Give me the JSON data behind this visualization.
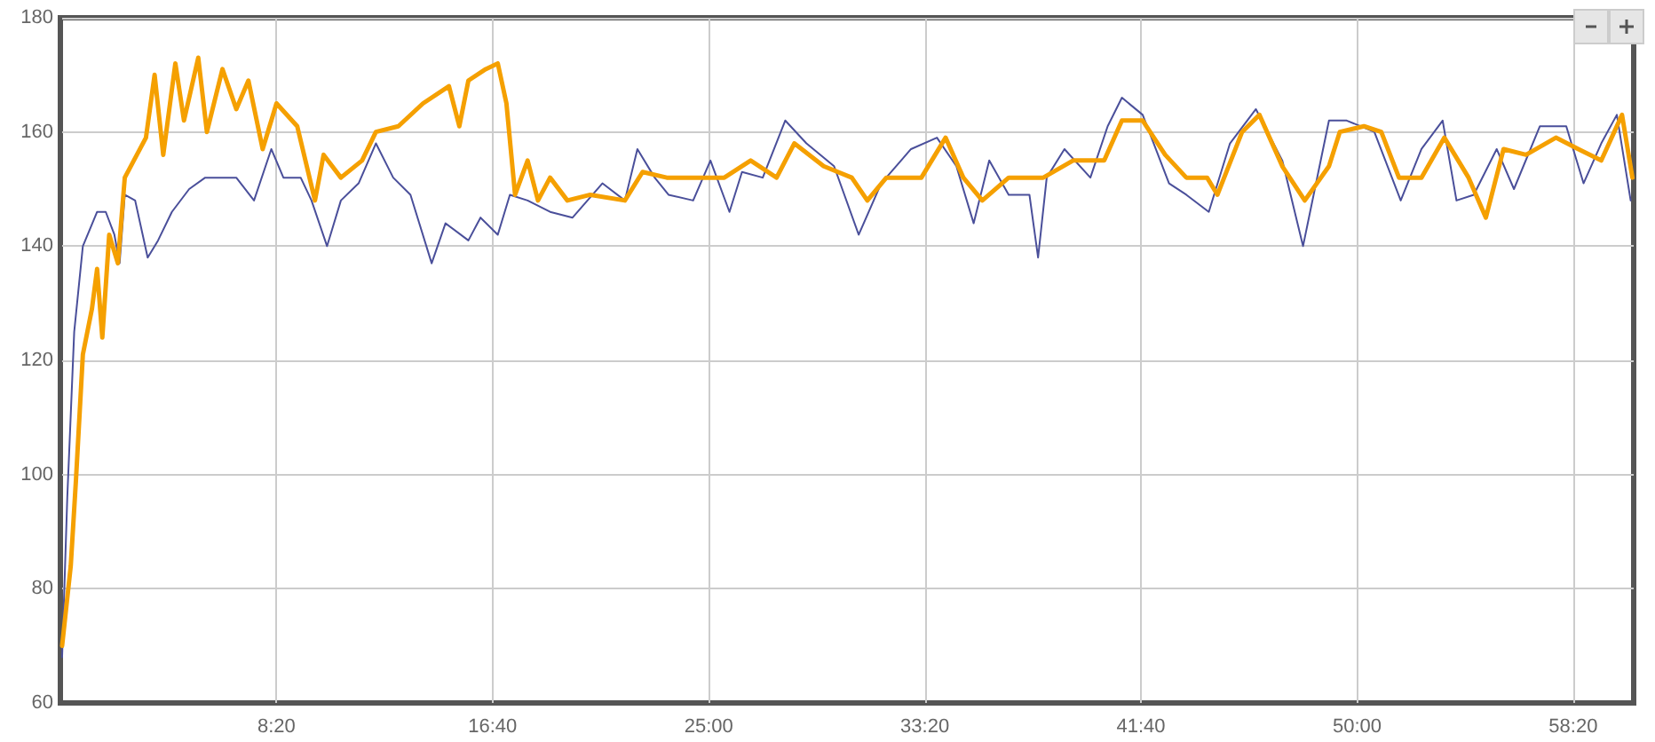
{
  "chart_data": {
    "type": "line",
    "xlim": [
      0,
      3640
    ],
    "xticks": [
      {
        "value": 500,
        "label": "8:20"
      },
      {
        "value": 1000,
        "label": "16:40"
      },
      {
        "value": 1500,
        "label": "25:00"
      },
      {
        "value": 2000,
        "label": "33:20"
      },
      {
        "value": 2500,
        "label": "41:40"
      },
      {
        "value": 3000,
        "label": "50:00"
      },
      {
        "value": 3500,
        "label": "58:20"
      }
    ],
    "ylim": [
      60,
      180
    ],
    "yticks": [
      60,
      80,
      100,
      120,
      140,
      160,
      180
    ],
    "grid": true,
    "marker": "none",
    "line_style": "solid",
    "series": [
      {
        "color": "#4a4f9a",
        "x": [
          4,
          16,
          32,
          52,
          85,
          105,
          125,
          137,
          149,
          173,
          202,
          226,
          258,
          298,
          335,
          367,
          407,
          448,
          488,
          516,
          556,
          581,
          617,
          649,
          690,
          730,
          770,
          810,
          859,
          891,
          944,
          972,
          1012,
          1040,
          1081,
          1133,
          1185,
          1254,
          1306,
          1335,
          1375,
          1407,
          1464,
          1504,
          1548,
          1577,
          1625,
          1677,
          1726,
          1790,
          1847,
          1899,
          1968,
          2028,
          2073,
          2113,
          2149,
          2194,
          2242,
          2262,
          2282,
          2323,
          2383,
          2423,
          2456,
          2504,
          2565,
          2605,
          2657,
          2706,
          2766,
          2827,
          2875,
          2935,
          2976,
          3040,
          3101,
          3149,
          3198,
          3230,
          3270,
          3323,
          3363,
          3423,
          3484,
          3524,
          3565,
          3601,
          3633
        ],
        "values": [
          68,
          96,
          125,
          140,
          146,
          146,
          142,
          137,
          149,
          148,
          138,
          141,
          146,
          150,
          152,
          152,
          152,
          148,
          157,
          152,
          152,
          148,
          140,
          148,
          151,
          158,
          152,
          149,
          137,
          144,
          141,
          145,
          142,
          149,
          148,
          146,
          145,
          151,
          148,
          157,
          152,
          149,
          148,
          155,
          146,
          153,
          152,
          162,
          158,
          154,
          142,
          151,
          157,
          159,
          154,
          144,
          155,
          149,
          149,
          138,
          152,
          157,
          152,
          161,
          166,
          163,
          151,
          149,
          146,
          158,
          164,
          155,
          140,
          162,
          162,
          160,
          148,
          157,
          162,
          148,
          149,
          157,
          150,
          161,
          161,
          151,
          158,
          163,
          148
        ]
      },
      {
        "color": "#f5a000",
        "x": [
          4,
          24,
          36,
          52,
          73,
          85,
          97,
          113,
          133,
          149,
          177,
          198,
          218,
          238,
          266,
          286,
          319,
          339,
          375,
          407,
          435,
          468,
          500,
          548,
          589,
          609,
          649,
          698,
          730,
          782,
          839,
          899,
          923,
          944,
          984,
          1012,
          1032,
          1052,
          1081,
          1105,
          1133,
          1173,
          1226,
          1306,
          1347,
          1403,
          1468,
          1536,
          1597,
          1657,
          1698,
          1766,
          1831,
          1867,
          1911,
          1992,
          2048,
          2089,
          2133,
          2194,
          2274,
          2343,
          2415,
          2456,
          2504,
          2556,
          2605,
          2653,
          2677,
          2734,
          2774,
          2827,
          2879,
          2935,
          2960,
          3016,
          3056,
          3097,
          3149,
          3202,
          3258,
          3298,
          3339,
          3391,
          3460,
          3512,
          3565,
          3613,
          3637
        ],
        "values": [
          70,
          84,
          99,
          121,
          129,
          136,
          124,
          142,
          137,
          152,
          156,
          159,
          170,
          156,
          172,
          162,
          173,
          160,
          171,
          164,
          169,
          157,
          165,
          161,
          148,
          156,
          152,
          155,
          160,
          161,
          165,
          168,
          161,
          169,
          171,
          172,
          165,
          149,
          155,
          148,
          152,
          148,
          149,
          148,
          153,
          152,
          152,
          152,
          155,
          152,
          158,
          154,
          152,
          148,
          152,
          152,
          159,
          152,
          148,
          152,
          152,
          155,
          155,
          162,
          162,
          156,
          152,
          152,
          149,
          160,
          163,
          154,
          148,
          154,
          160,
          161,
          160,
          152,
          152,
          159,
          152,
          145,
          157,
          156,
          159,
          157,
          155,
          163,
          152
        ]
      }
    ]
  }
}
